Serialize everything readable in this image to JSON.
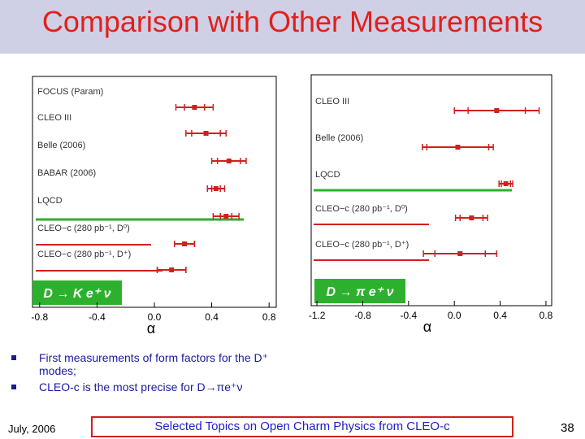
{
  "slide": {
    "title": "Comparison with Other Measurements",
    "footer_date": "July, 2006",
    "footer_title": "Selected Topics on Open Charm Physics from CLEO-c",
    "page_number": "38",
    "bullets": [
      "First measurements of form factors for the D⁺ modes;",
      "CLEO-c is the most precise for D→πe⁺ν"
    ]
  },
  "chart_data": [
    {
      "type": "scatter",
      "channel_label": "D → K e⁺ ν",
      "xlabel": "α",
      "xlim": [
        -0.85,
        0.85
      ],
      "xticks": [
        "-0.8",
        "-0.4",
        "0.0",
        "0.4",
        "0.8"
      ],
      "xtick_values": [
        -0.8,
        -0.4,
        0.0,
        0.4,
        0.8
      ],
      "measurements": [
        {
          "label": "FOCUS (Param)",
          "value": 0.28,
          "err_in": 0.07,
          "err_out": 0.13,
          "color": "#d02020"
        },
        {
          "label": "CLEO III",
          "value": 0.36,
          "err_in": 0.1,
          "err_out": 0.14,
          "color": "#d02020"
        },
        {
          "label": "Belle (2006)",
          "value": 0.52,
          "err_in": 0.08,
          "err_out": 0.12,
          "color": "#d02020"
        },
        {
          "label": "BABAR (2006)",
          "value": 0.43,
          "err_in": 0.03,
          "err_out": 0.06,
          "color": "#d02020"
        },
        {
          "label": "LQCD",
          "value": 0.5,
          "err_in": 0.04,
          "err_out": 0.09,
          "color": "#d02020"
        },
        {
          "label": "CLEO−c (280 pb⁻¹, D⁰)",
          "value": 0.21,
          "err_in": 0.07,
          "err_out": 0.07,
          "color": "#d02020"
        },
        {
          "label": "CLEO−c (280 pb⁻¹, D⁺)",
          "value": 0.12,
          "err_in": 0.1,
          "err_out": 0.1,
          "color": "#d02020"
        }
      ]
    },
    {
      "type": "scatter",
      "channel_label": "D → π e⁺ ν",
      "xlabel": "α",
      "xlim": [
        -1.25,
        0.85
      ],
      "xticks": [
        "-1.2",
        "-0.8",
        "-0.4",
        "0.0",
        "0.4",
        "0.8"
      ],
      "xtick_values": [
        -1.2,
        -0.8,
        -0.4,
        0.0,
        0.4,
        0.8
      ],
      "measurements": [
        {
          "label": "CLEO III",
          "value": 0.37,
          "err_in": 0.25,
          "err_out": 0.37,
          "color": "#d02020"
        },
        {
          "label": "Belle (2006)",
          "value": 0.03,
          "err_in": 0.27,
          "err_out": 0.31,
          "color": "#d02020"
        },
        {
          "label": "LQCD",
          "value": 0.45,
          "err_in": 0.04,
          "err_out": 0.06,
          "color": "#d02020"
        },
        {
          "label": "CLEO−c (280 pb⁻¹, D⁰)",
          "value": 0.15,
          "err_in": 0.1,
          "err_out": 0.14,
          "color": "#d02020"
        },
        {
          "label": "CLEO−c (280 pb⁻¹, D⁺)",
          "value": 0.05,
          "err_in": 0.22,
          "err_out": 0.32,
          "color": "#d02020"
        }
      ]
    }
  ]
}
